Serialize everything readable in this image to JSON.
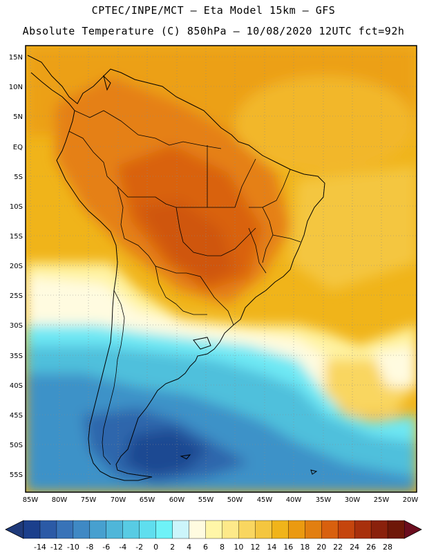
{
  "header": {
    "line1": "CPTEC/INPE/MCT –  Eta Model 15km – GFS",
    "line2": "Absolute Temperature (C) 850hPa – 10/08/2020 12UTC fct=92h"
  },
  "map": {
    "lat_labels": [
      "15N",
      "10N",
      "5N",
      "EQ",
      "5S",
      "10S",
      "15S",
      "20S",
      "25S",
      "30S",
      "35S",
      "40S",
      "45S",
      "50S",
      "55S"
    ],
    "lon_labels": [
      "85W",
      "80W",
      "75W",
      "70W",
      "65W",
      "60W",
      "55W",
      "50W",
      "45W",
      "40W",
      "35W",
      "30W",
      "25W",
      "20W"
    ],
    "lat_range_deg": [
      -58,
      16
    ],
    "lon_range_deg": [
      -86,
      -19
    ]
  },
  "colorbar": {
    "labels": [
      "-14",
      "-12",
      "-10",
      "-8",
      "-6",
      "-4",
      "-2",
      "0",
      "2",
      "4",
      "6",
      "8",
      "10",
      "12",
      "14",
      "16",
      "18",
      "20",
      "22",
      "24",
      "26",
      "28"
    ],
    "colors": [
      "#1b3f8c",
      "#2b5aa6",
      "#3873b8",
      "#3f89c4",
      "#47a0cf",
      "#4fb6d9",
      "#58cbe3",
      "#5fdeee",
      "#6ef2f7",
      "#ccf5fb",
      "#fffbe0",
      "#fff6a8",
      "#fde98a",
      "#f9d660",
      "#f4c63f",
      "#f0b41a",
      "#eb9a10",
      "#e27f10",
      "#d8600e",
      "#c5450d",
      "#a8300c",
      "#8a210c",
      "#6e1708"
    ],
    "under_color": "#1f3a7a",
    "over_color": "#6b0d1e"
  }
}
